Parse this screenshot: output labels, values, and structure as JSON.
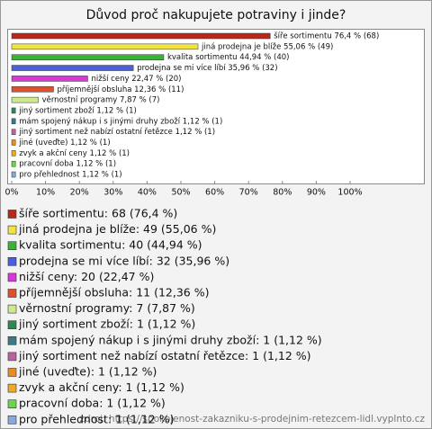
{
  "chart_data": {
    "type": "bar",
    "orientation": "horizontal",
    "title": "Důvod proč nakupujete potraviny i jinde?",
    "values": [
      76.4,
      55.06,
      44.94,
      35.96,
      22.47,
      12.36,
      7.87,
      1.12,
      1.12,
      1.12,
      1.12,
      1.12,
      1.12,
      1.12
    ],
    "value_labels": [
      "šíře sortimentu 76,4 % (68)",
      "jiná prodejna je blíže 55,06 % (49)",
      "kvalita sortimentu 44,94 % (40)",
      "prodejna se mi více líbí 35,96 % (32)",
      "nižší ceny 22,47 % (20)",
      "příjemnější obsluha 12,36 % (11)",
      "věrnostní programy 7,87 % (7)",
      "jiný sortiment zboží 1,12 % (1)",
      "mám spojený nákup i s jinými druhy zboží 1,12 % (1)",
      "jiný sortiment než nabízí ostatní řetězce 1,12 % (1)",
      "jiné (uveďte) 1,12 % (1)",
      "zvyk a akční ceny 1,12 % (1)",
      "pracovní doba 1,12 % (1)",
      "pro přehlednost 1,12 % (1)"
    ],
    "legend_labels": [
      "šíře sortimentu: 68 (76,4 %)",
      "jiná prodejna je blíže: 49 (55,06 %)",
      "kvalita sortimentu: 40 (44,94 %)",
      "prodejna se mi více líbí: 32 (35,96 %)",
      "nižší ceny: 20 (22,47 %)",
      "příjemnější obsluha: 11 (12,36 %)",
      "věrnostní programy: 7 (7,87 %)",
      "jiný sortiment zboží: 1 (1,12 %)",
      "mám spojený nákup i s jinými druhy zboží: 1 (1,12 %)",
      "jiný sortiment než nabízí ostatní řetězce: 1 (1,12 %)",
      "jiné (uveďte): 1 (1,12 %)",
      "zvyk a akční ceny: 1 (1,12 %)",
      "pracovní doba: 1 (1,12 %)",
      "pro přehlednost: 1 (1,12 %)"
    ],
    "colors": [
      "#b8291c",
      "#f2e43a",
      "#35b535",
      "#4a5fe0",
      "#d838d8",
      "#e0502a",
      "#cdea8a",
      "#2a8a55",
      "#3a7a88",
      "#b8669a",
      "#ee8a22",
      "#eeaa22",
      "#6ad64a",
      "#88a8dc"
    ],
    "xlim": [
      0,
      100
    ],
    "xticks": [
      {
        "value": 0,
        "label": "0%"
      },
      {
        "value": 10,
        "label": "10%"
      },
      {
        "value": 20,
        "label": "20%"
      },
      {
        "value": 30,
        "label": "30%"
      },
      {
        "value": 40,
        "label": "40%"
      },
      {
        "value": 50,
        "label": "50%"
      },
      {
        "value": 60,
        "label": "60%"
      },
      {
        "value": 70,
        "label": "70%"
      },
      {
        "value": 80,
        "label": "80%"
      },
      {
        "value": 90,
        "label": "90%"
      },
      {
        "value": 100,
        "label": "100%"
      }
    ],
    "source": "zdroj: https://spokojenost-zakazniku-s-prodejnim-retezcem-lidl.vyplnto.cz"
  }
}
